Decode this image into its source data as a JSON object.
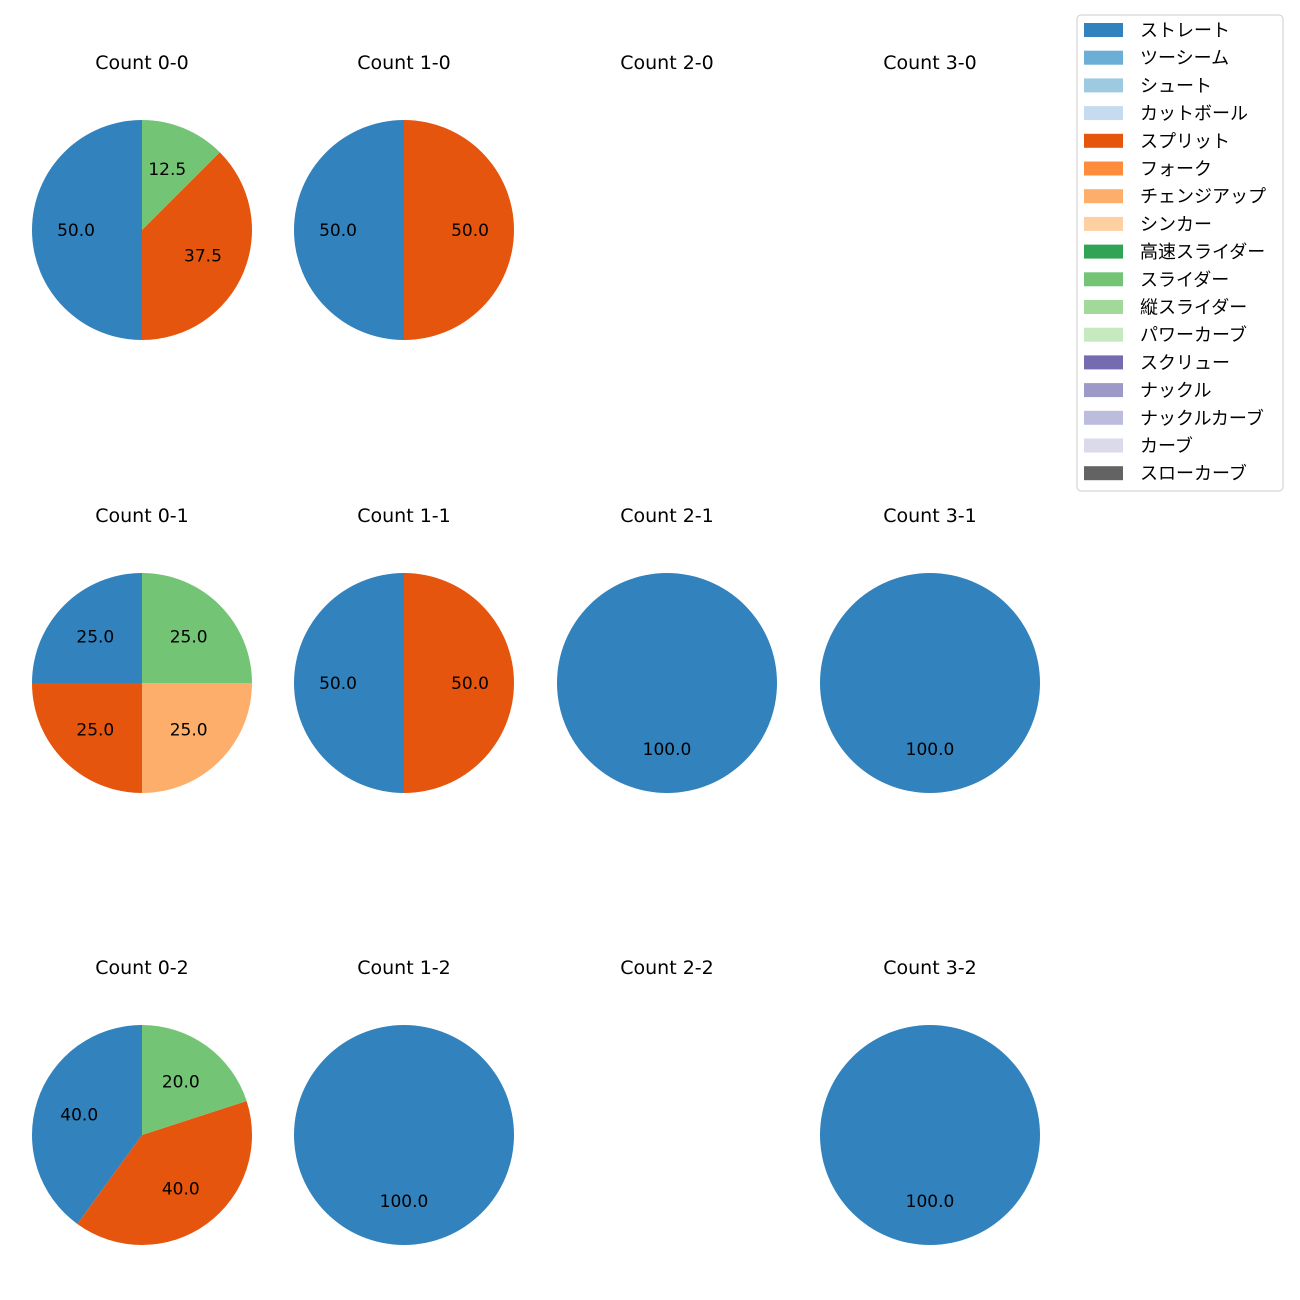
{
  "chart_data": {
    "type": "pie",
    "category_colors": {
      "ストレート": "#3182bd",
      "ツーシーム": "#6baed6",
      "シュート": "#9ecae1",
      "カットボール": "#c6dbef",
      "スプリット": "#e6550d",
      "フォーク": "#fd8d3c",
      "チェンジアップ": "#fdae6b",
      "シンカー": "#fdd0a2",
      "高速スライダー": "#31a354",
      "スライダー": "#74c476",
      "縦スライダー": "#a1d99b",
      "パワーカーブ": "#c7e9c0",
      "スクリュー": "#756bb1",
      "ナックル": "#9e9ac8",
      "ナックルカーブ": "#bcbddc",
      "カーブ": "#dadaeb",
      "スローカーブ": "#636363"
    },
    "legend": {
      "placement": "top-right",
      "entries": [
        "ストレート",
        "ツーシーム",
        "シュート",
        "カットボール",
        "スプリット",
        "フォーク",
        "チェンジアップ",
        "シンカー",
        "高速スライダー",
        "スライダー",
        "縦スライダー",
        "パワーカーブ",
        "スクリュー",
        "ナックル",
        "ナックルカーブ",
        "カーブ",
        "スローカーブ"
      ]
    },
    "charts": [
      {
        "title": "Count 0-0",
        "slices": [
          {
            "category": "ストレート",
            "value": 50.0,
            "label": "50.0"
          },
          {
            "category": "スプリット",
            "value": 37.5,
            "label": "37.5"
          },
          {
            "category": "スライダー",
            "value": 12.5,
            "label": "12.5"
          }
        ]
      },
      {
        "title": "Count 1-0",
        "slices": [
          {
            "category": "ストレート",
            "value": 50.0,
            "label": "50.0"
          },
          {
            "category": "スプリット",
            "value": 50.0,
            "label": "50.0"
          }
        ]
      },
      {
        "title": "Count 2-0",
        "slices": []
      },
      {
        "title": "Count 3-0",
        "slices": []
      },
      {
        "title": "Count 0-1",
        "slices": [
          {
            "category": "ストレート",
            "value": 25.0,
            "label": "25.0"
          },
          {
            "category": "スプリット",
            "value": 25.0,
            "label": "25.0"
          },
          {
            "category": "チェンジアップ",
            "value": 25.0,
            "label": "25.0"
          },
          {
            "category": "スライダー",
            "value": 25.0,
            "label": "25.0"
          }
        ]
      },
      {
        "title": "Count 1-1",
        "slices": [
          {
            "category": "ストレート",
            "value": 50.0,
            "label": "50.0"
          },
          {
            "category": "スプリット",
            "value": 50.0,
            "label": "50.0"
          }
        ]
      },
      {
        "title": "Count 2-1",
        "slices": [
          {
            "category": "ストレート",
            "value": 100.0,
            "label": "100.0"
          }
        ]
      },
      {
        "title": "Count 3-1",
        "slices": [
          {
            "category": "ストレート",
            "value": 100.0,
            "label": "100.0"
          }
        ]
      },
      {
        "title": "Count 0-2",
        "slices": [
          {
            "category": "ストレート",
            "value": 40.0,
            "label": "40.0"
          },
          {
            "category": "スプリット",
            "value": 40.0,
            "label": "40.0"
          },
          {
            "category": "スライダー",
            "value": 20.0,
            "label": "20.0"
          }
        ]
      },
      {
        "title": "Count 1-2",
        "slices": [
          {
            "category": "ストレート",
            "value": 100.0,
            "label": "100.0"
          }
        ]
      },
      {
        "title": "Count 2-2",
        "slices": []
      },
      {
        "title": "Count 3-2",
        "slices": [
          {
            "category": "ストレート",
            "value": 100.0,
            "label": "100.0"
          }
        ]
      }
    ]
  }
}
